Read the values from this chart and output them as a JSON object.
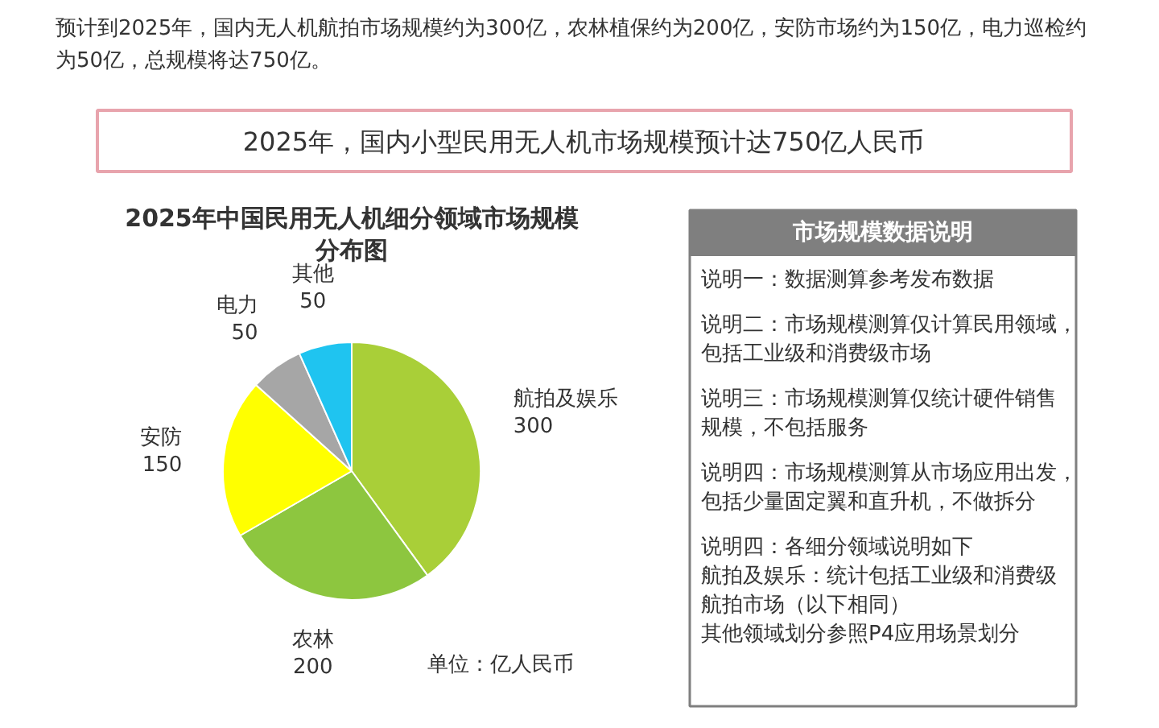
{
  "chart_data": {
    "type": "pie",
    "title": "2025年中国民用无人机细分领域市场规模分布图",
    "categories": [
      "航拍及娱乐",
      "农林",
      "安防",
      "电力",
      "其他"
    ],
    "values": [
      300,
      200,
      150,
      50,
      50
    ],
    "colors": [
      "#a9cf38",
      "#8dc63f",
      "#ffff00",
      "#a6a6a6",
      "#1fc4f0"
    ],
    "data_labels": true,
    "annotations": [
      "预计到2025年，国内无人机航拍市场规模约为300亿，农林植保约为200亿，安防市场约为150亿，电力巡检约为50亿，总规模将达750亿。",
      "2025年，国内小型民用无人机市场规模预计达750亿人民币",
      "单位：亿人民币",
      "市场规模数据说明",
      "说明一：数据测算参考发布数据",
      "说明二：市场规模测算仅计算民用领域，包括工业级和消费级市场",
      "说明三：市场规模测算仅统计硬件销售规模，不包括服务",
      "说明四：市场规模测算从市场应用出发，包括少量固定翼和直升机，不做拆分",
      "说明四：各细分领域说明如下",
      "航拍及娱乐：统计包括工业级和消费级航拍市场（以下相同）",
      "其他领域划分参照P4应用场景划分"
    ]
  }
}
